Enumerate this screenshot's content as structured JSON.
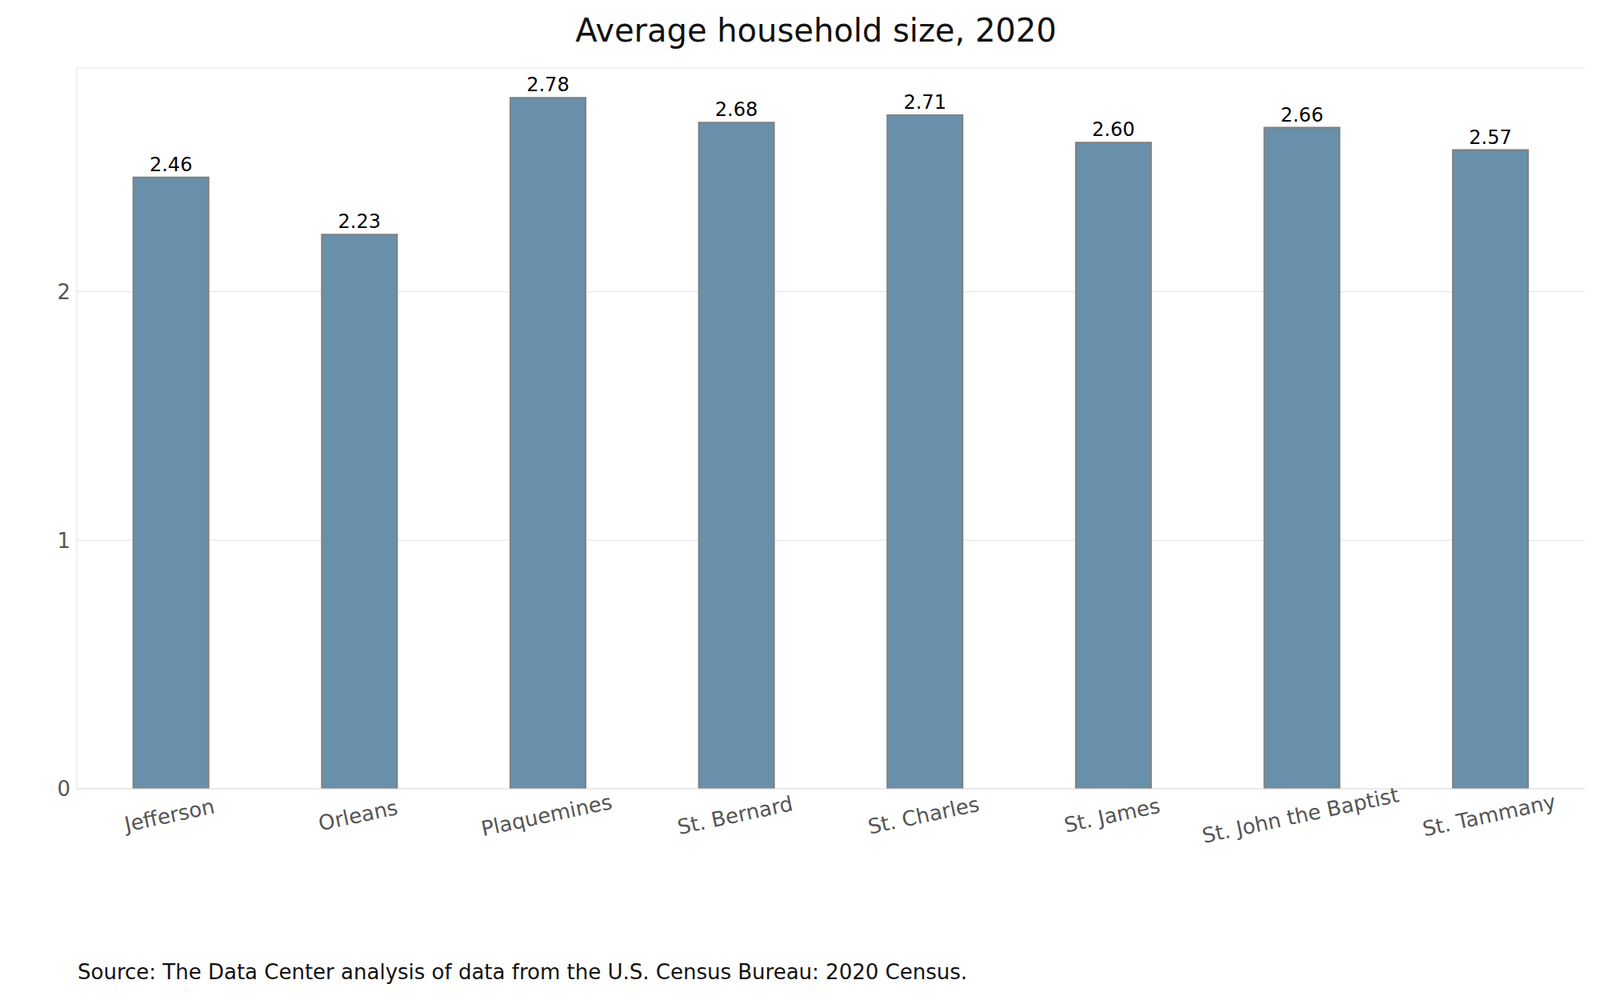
{
  "chart_data": {
    "type": "bar",
    "title": "Average household size, 2020",
    "categories": [
      "Jefferson",
      "Orleans",
      "Plaquemines",
      "St. Bernard",
      "St. Charles",
      "St. James",
      "St. John the Baptist",
      "St. Tammany"
    ],
    "values": [
      2.46,
      2.23,
      2.78,
      2.68,
      2.71,
      2.6,
      2.66,
      2.57
    ],
    "value_labels": [
      "2.46",
      "2.23",
      "2.78",
      "2.68",
      "2.71",
      "2.60",
      "2.66",
      "2.57"
    ],
    "color": "#6990ab",
    "ylim": [
      0,
      2.9
    ],
    "yticks": [
      0,
      1,
      2
    ],
    "grid": true,
    "data_labels": true,
    "source": "Source: The Data Center analysis of data from the U.S. Census Bureau: 2020 Census."
  }
}
